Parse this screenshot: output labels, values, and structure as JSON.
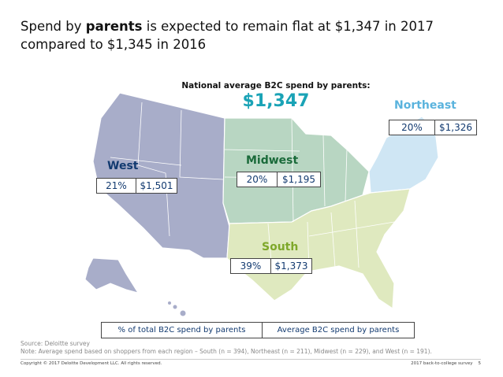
{
  "title": {
    "part1": "Spend by ",
    "bold": "parents",
    "part2": " is expected to remain flat at $1,347 in 2017 compared to $1,345 in 2016"
  },
  "national": {
    "label": "National average B2C spend by parents:",
    "value": "$1,347"
  },
  "regions": {
    "west": {
      "name": "West",
      "pct": "21%",
      "spend": "$1,501",
      "color": "#a8adc9",
      "label_color": "#123a70"
    },
    "midwest": {
      "name": "Midwest",
      "pct": "20%",
      "spend": "$1,195",
      "color": "#b8d6c2",
      "label_color": "#1a6a3a"
    },
    "northeast": {
      "name": "Northeast",
      "pct": "20%",
      "spend": "$1,326",
      "color": "#cfe6f4",
      "label_color": "#5ab3dd"
    },
    "south": {
      "name": "South",
      "pct": "39%",
      "spend": "$1,373",
      "color": "#dfe9bf",
      "label_color": "#7ea82a"
    }
  },
  "legend": {
    "pct_label": "% of total B2C spend by parents",
    "spend_label": "Average B2C spend by parents"
  },
  "source": "Source: Deloitte survey",
  "note": "Note:  Average spend based on shoppers from each region – South (n = 394), Northeast (n = 211), Midwest (n = 229), and West (n = 191).",
  "footer": {
    "copyright": "Copyright © 2017 Deloitte Development LLC. All rights reserved.",
    "survey": "2017 back-to-college survey",
    "page": "5"
  }
}
